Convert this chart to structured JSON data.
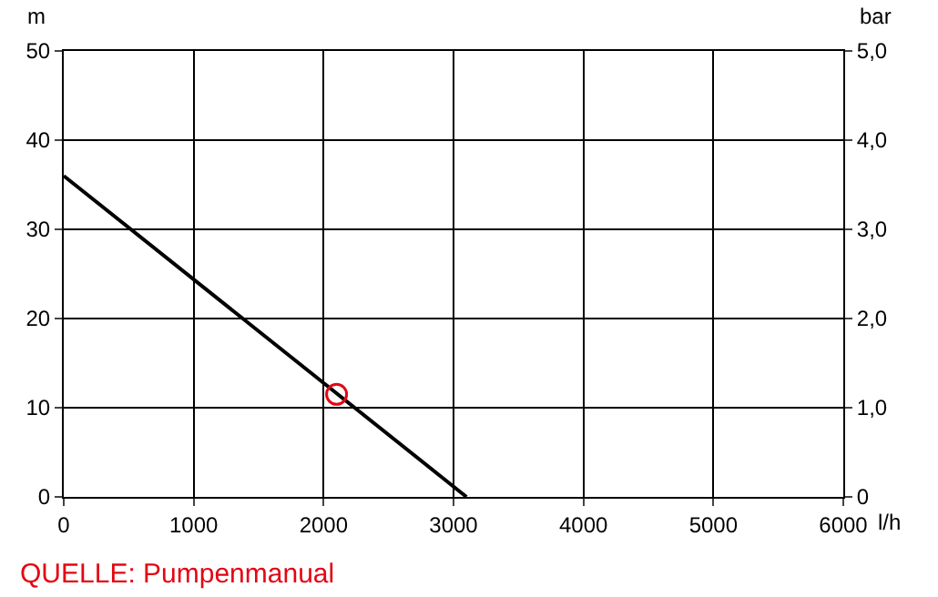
{
  "chart_data": {
    "type": "line",
    "xlabel": "l/h",
    "ylabel": "m",
    "y2label": "bar",
    "xlim": [
      0,
      6000
    ],
    "xticks": [
      0,
      1000,
      2000,
      3000,
      4000,
      5000,
      6000
    ],
    "ylim": [
      0,
      50
    ],
    "yticks": [
      0,
      10,
      20,
      30,
      40,
      50
    ],
    "y2lim": [
      0,
      5
    ],
    "y2ticks": [
      {
        "value": 0,
        "label": "0"
      },
      {
        "value": 1,
        "label": "1,0"
      },
      {
        "value": 2,
        "label": "2,0"
      },
      {
        "value": 3,
        "label": "3,0"
      },
      {
        "value": 4,
        "label": "4,0"
      },
      {
        "value": 5,
        "label": "5,0"
      }
    ],
    "grid": true,
    "series": [
      {
        "color": "#000000",
        "x": [
          0,
          3100
        ],
        "values": [
          36,
          0
        ]
      },
      {
        "type": "scatter",
        "marker": "circle",
        "color": "#e30613",
        "x": [
          2100
        ],
        "values": [
          11.5
        ]
      }
    ],
    "annotations": [
      "QUELLE: Pumpenmanual"
    ]
  }
}
